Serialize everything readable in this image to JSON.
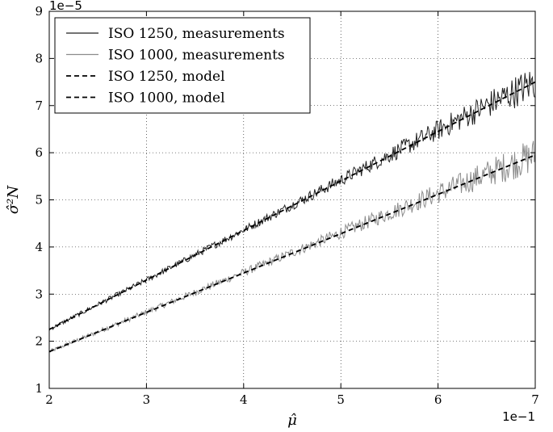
{
  "chart_data": {
    "type": "line",
    "title": "",
    "xlabel": "μ̂",
    "ylabel": "σ̂²N",
    "x_exponent_label": "1e−1",
    "y_exponent_label": "1e−5",
    "xlim": [
      2,
      7
    ],
    "ylim": [
      1,
      9
    ],
    "x_ticks": [
      "2",
      "3",
      "4",
      "5",
      "6",
      "7"
    ],
    "y_ticks": [
      "1",
      "2",
      "3",
      "4",
      "5",
      "6",
      "7",
      "8",
      "9"
    ],
    "grid": true,
    "legend_position": "top-left",
    "series": [
      {
        "name": "ISO 1250, measurements",
        "color": "#222222",
        "style": "solid-noisy",
        "x": [
          2.0,
          2.5,
          3.0,
          3.5,
          4.0,
          4.5,
          5.0,
          5.5,
          6.0,
          6.5,
          7.0
        ],
        "y": [
          2.25,
          2.78,
          3.3,
          3.83,
          4.36,
          4.89,
          5.42,
          5.95,
          6.48,
          7.0,
          7.5
        ]
      },
      {
        "name": "ISO 1000, measurements",
        "color": "#8c8c8c",
        "style": "solid-noisy",
        "x": [
          2.0,
          2.5,
          3.0,
          3.5,
          4.0,
          4.5,
          5.0,
          5.5,
          6.0,
          6.5,
          7.0
        ],
        "y": [
          1.78,
          2.2,
          2.62,
          3.04,
          3.46,
          3.88,
          4.3,
          4.72,
          5.14,
          5.55,
          5.95
        ]
      },
      {
        "name": "ISO 1250, model",
        "color": "#000000",
        "style": "dashed",
        "x": [
          2.0,
          7.0
        ],
        "y": [
          2.25,
          7.5
        ]
      },
      {
        "name": "ISO 1000, model",
        "color": "#000000",
        "style": "dashed",
        "x": [
          2.0,
          7.0
        ],
        "y": [
          1.78,
          5.95
        ]
      }
    ]
  }
}
